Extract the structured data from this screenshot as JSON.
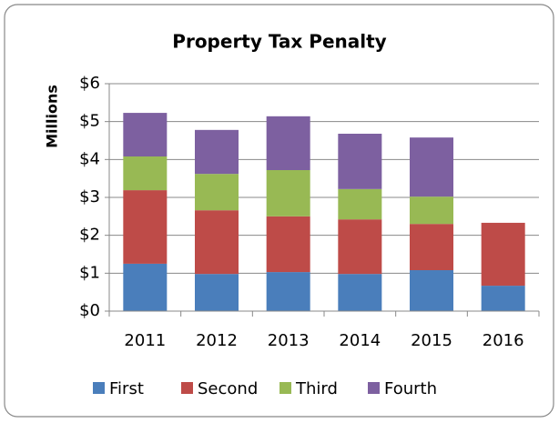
{
  "chart_data": {
    "type": "stacked_bar",
    "title": "Property Tax Penalty",
    "y_label": "Millions",
    "categories": [
      "2011",
      "2012",
      "2013",
      "2014",
      "2015",
      "2016"
    ],
    "series": [
      {
        "name": "First",
        "color": "#4a7ebb",
        "values": [
          1.25,
          0.98,
          1.03,
          0.98,
          1.08,
          0.67
        ]
      },
      {
        "name": "Second",
        "color": "#be4b48",
        "values": [
          1.94,
          1.68,
          1.47,
          1.44,
          1.22,
          1.66
        ]
      },
      {
        "name": "Third",
        "color": "#98b954",
        "values": [
          0.89,
          0.96,
          1.22,
          0.8,
          0.72,
          null
        ]
      },
      {
        "name": "Fourth",
        "color": "#7d60a0",
        "values": [
          1.15,
          1.16,
          1.42,
          1.46,
          1.56,
          null
        ]
      }
    ],
    "ylim": [
      0,
      6
    ],
    "yticks": [
      {
        "value": 0,
        "label": "$0"
      },
      {
        "value": 1,
        "label": "$1"
      },
      {
        "value": 2,
        "label": "$2"
      },
      {
        "value": 3,
        "label": "$3"
      },
      {
        "value": 4,
        "label": "$4"
      },
      {
        "value": 5,
        "label": "$5"
      },
      {
        "value": 6,
        "label": "$6"
      }
    ],
    "grid": true,
    "legend": "bottom"
  }
}
